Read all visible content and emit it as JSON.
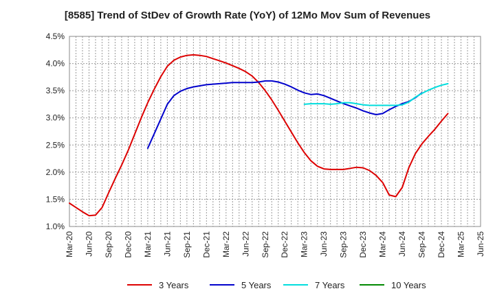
{
  "chart_data": {
    "type": "line",
    "title": "[8585]  Trend of StDev of Growth Rate (YoY) of 12Mo Mov Sum of Revenues",
    "xlabel": "",
    "ylabel": "",
    "ylim": [
      1.0,
      4.5
    ],
    "yticks": [
      "4.5%",
      "4.0%",
      "3.5%",
      "3.0%",
      "2.5%",
      "2.0%",
      "1.5%",
      "1.0%"
    ],
    "ytick_values": [
      4.5,
      4.0,
      3.5,
      3.0,
      2.5,
      2.0,
      1.5,
      1.0
    ],
    "xticks": [
      "Mar-20",
      "Jun-20",
      "Sep-20",
      "Dec-20",
      "Mar-21",
      "Jun-21",
      "Sep-21",
      "Dec-21",
      "Mar-22",
      "Jun-22",
      "Sep-22",
      "Dec-22",
      "Mar-23",
      "Jun-23",
      "Sep-23",
      "Dec-23",
      "Mar-24",
      "Jun-24",
      "Sep-24",
      "Dec-24",
      "Mar-25",
      "Jun-25"
    ],
    "grid": true,
    "legend_position": "bottom",
    "series": [
      {
        "name": "3 Years",
        "color": "#dd0000",
        "start_month_index": 0,
        "values": [
          1.43,
          1.35,
          1.27,
          1.2,
          1.21,
          1.35,
          1.62,
          1.88,
          2.13,
          2.4,
          2.7,
          3.0,
          3.28,
          3.53,
          3.76,
          3.95,
          4.06,
          4.12,
          4.15,
          4.16,
          4.15,
          4.13,
          4.09,
          4.05,
          4.01,
          3.96,
          3.91,
          3.85,
          3.77,
          3.65,
          3.5,
          3.33,
          3.14,
          2.94,
          2.74,
          2.54,
          2.36,
          2.21,
          2.11,
          2.06,
          2.05,
          2.05,
          2.05,
          2.07,
          2.09,
          2.08,
          2.03,
          1.94,
          1.81,
          1.58,
          1.55,
          1.72,
          2.08,
          2.34,
          2.52,
          2.66,
          2.79,
          2.94,
          3.08
        ]
      },
      {
        "name": "5 Years",
        "color": "#0000cc",
        "start_month_index": 12,
        "values": [
          2.44,
          2.71,
          2.98,
          3.25,
          3.41,
          3.49,
          3.54,
          3.57,
          3.59,
          3.61,
          3.62,
          3.63,
          3.64,
          3.65,
          3.65,
          3.65,
          3.65,
          3.66,
          3.68,
          3.68,
          3.66,
          3.62,
          3.57,
          3.51,
          3.46,
          3.43,
          3.44,
          3.41,
          3.36,
          3.31,
          3.26,
          3.22,
          3.18,
          3.13,
          3.09,
          3.06,
          3.08,
          3.15,
          3.21,
          3.26,
          3.3,
          3.37,
          3.46
        ]
      },
      {
        "name": "7 Years",
        "color": "#00dddd",
        "start_month_index": 36,
        "values": [
          3.25,
          3.26,
          3.26,
          3.26,
          3.25,
          3.26,
          3.28,
          3.28,
          3.26,
          3.24,
          3.23,
          3.23,
          3.23,
          3.23,
          3.23,
          3.24,
          3.29,
          3.38,
          3.45,
          3.51,
          3.56,
          3.6,
          3.63
        ]
      },
      {
        "name": "10 Years",
        "color": "#008800",
        "start_month_index": 0,
        "values": []
      }
    ]
  }
}
